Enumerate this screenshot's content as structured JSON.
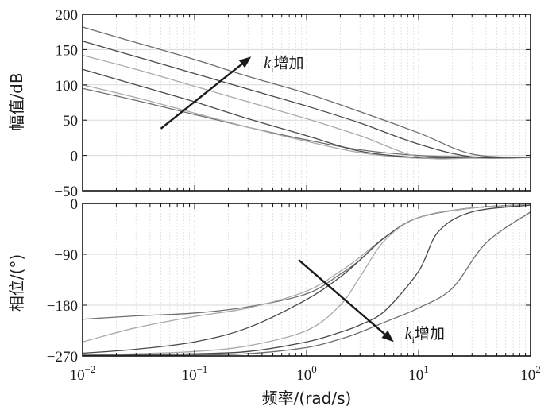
{
  "colors": {
    "curve_dark": "#4a4a4a",
    "curve_mid": "#6e6e6e",
    "curve_light": "#aaaaaa",
    "grid_major": "#d9d9d9",
    "grid_minor": "#e4e4e4",
    "axis": "#111111",
    "arrow": "#1a1a1a"
  },
  "chart_data": [
    {
      "type": "line",
      "panel": "magnitude",
      "xscale": "log",
      "xlim": [
        0.01,
        100
      ],
      "ylim": [
        -50,
        200
      ],
      "yticks": [
        -50,
        0,
        50,
        100,
        150,
        200
      ],
      "ytick_labels": [
        "−50",
        "0",
        "50",
        "100",
        "150",
        "200"
      ],
      "ylabel": "幅值/dB",
      "grid": true,
      "annotation": {
        "var": "k",
        "sub": "i",
        "text": "增加",
        "arrow_from": [
          0.05,
          38
        ],
        "arrow_to": [
          0.32,
          140
        ]
      },
      "series": [
        {
          "x": [
            0.01,
            0.03,
            0.1,
            0.3,
            1,
            3,
            10,
            30,
            100
          ],
          "y": [
            95,
            78,
            58,
            40,
            22,
            8,
            0,
            -2,
            -3
          ]
        },
        {
          "x": [
            0.01,
            0.03,
            0.1,
            0.3,
            1,
            3,
            10,
            30,
            100
          ],
          "y": [
            100,
            82,
            60,
            40,
            20,
            4,
            -4,
            -3,
            -3
          ]
        },
        {
          "x": [
            0.01,
            0.03,
            0.1,
            0.3,
            1,
            3,
            10,
            30,
            100
          ],
          "y": [
            122,
            100,
            76,
            52,
            28,
            6,
            -3,
            -3,
            -3
          ]
        },
        {
          "x": [
            0.01,
            0.03,
            0.1,
            0.3,
            1,
            3,
            10,
            30,
            100
          ],
          "y": [
            142,
            122,
            98,
            76,
            52,
            28,
            -2,
            -4,
            -3
          ]
        },
        {
          "x": [
            0.01,
            0.03,
            0.1,
            0.3,
            1,
            3,
            10,
            30,
            100
          ],
          "y": [
            162,
            140,
            116,
            94,
            70,
            46,
            16,
            -2,
            -3
          ]
        },
        {
          "x": [
            0.01,
            0.03,
            0.1,
            0.3,
            1,
            3,
            10,
            30,
            100
          ],
          "y": [
            182,
            160,
            136,
            112,
            88,
            62,
            32,
            2,
            -3
          ]
        }
      ]
    },
    {
      "type": "line",
      "panel": "phase",
      "xscale": "log",
      "xlim": [
        0.01,
        100
      ],
      "ylim": [
        -270,
        0
      ],
      "xticks": [
        0.01,
        0.1,
        1,
        10,
        100
      ],
      "xtick_labels": [
        {
          "base": "10",
          "exp": "−2"
        },
        {
          "base": "10",
          "exp": "−1"
        },
        {
          "base": "10",
          "exp": "0"
        },
        {
          "base": "10",
          "exp": "1"
        },
        {
          "base": "10",
          "exp": "2"
        }
      ],
      "yticks": [
        -270,
        -180,
        -90,
        0
      ],
      "ytick_labels": [
        "−270",
        "−180",
        "−90",
        "0"
      ],
      "xlabel": "频率/(rad/s)",
      "ylabel": "相位/(°)",
      "grid": true,
      "annotation": {
        "var": "k",
        "sub": "i",
        "text": "增加",
        "arrow_from": [
          0.85,
          -100
        ],
        "arrow_to": [
          6,
          -245
        ]
      },
      "series": [
        {
          "x": [
            0.01,
            0.03,
            0.1,
            0.3,
            1,
            2,
            3,
            5,
            10,
            30,
            100
          ],
          "y": [
            -205,
            -199,
            -194,
            -183,
            -160,
            -125,
            -100,
            -60,
            -25,
            -8,
            -2
          ]
        },
        {
          "x": [
            0.01,
            0.03,
            0.1,
            0.3,
            1,
            2,
            3,
            5,
            10,
            30,
            100
          ],
          "y": [
            -245,
            -220,
            -200,
            -185,
            -155,
            -120,
            -95,
            -60,
            -25,
            -8,
            -2
          ]
        },
        {
          "x": [
            0.01,
            0.03,
            0.1,
            0.3,
            1,
            2,
            3,
            5,
            10,
            30,
            100
          ],
          "y": [
            -265,
            -258,
            -245,
            -220,
            -170,
            -130,
            -100,
            -60,
            -25,
            -8,
            -2
          ]
        },
        {
          "x": [
            0.01,
            0.03,
            0.1,
            0.3,
            1,
            2,
            3,
            5,
            10,
            30,
            100
          ],
          "y": [
            -268,
            -266,
            -262,
            -252,
            -225,
            -180,
            -130,
            -65,
            -25,
            -8,
            -2
          ]
        },
        {
          "x": [
            0.01,
            0.03,
            0.1,
            0.3,
            1,
            2,
            3,
            5,
            10,
            15,
            30,
            100
          ],
          "y": [
            -269,
            -268,
            -266,
            -262,
            -245,
            -228,
            -215,
            -190,
            -120,
            -50,
            -15,
            -3
          ]
        },
        {
          "x": [
            0.01,
            0.03,
            0.1,
            0.3,
            1,
            2,
            3,
            5,
            10,
            20,
            40,
            100
          ],
          "y": [
            -270,
            -269,
            -268,
            -266,
            -255,
            -240,
            -228,
            -210,
            -185,
            -150,
            -70,
            -15
          ]
        }
      ]
    }
  ]
}
